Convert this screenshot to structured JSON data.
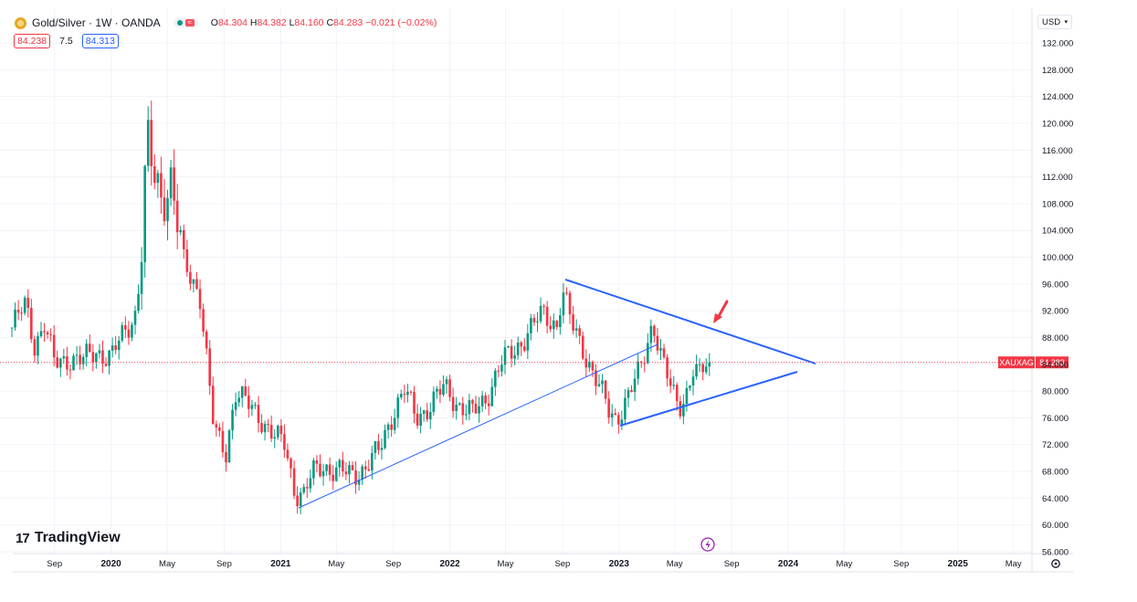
{
  "header": {
    "symbol_title": "Gold/Silver · 1W · OANDA",
    "ohlc": [
      {
        "label": "O",
        "value": "84.304"
      },
      {
        "label": "H",
        "value": "84.382"
      },
      {
        "label": "L",
        "value": "84.160"
      },
      {
        "label": "C",
        "value": "84.283"
      }
    ],
    "change": "−0.021 (−0.02%)",
    "bid": "84.238",
    "spread": "7.5",
    "ask": "84.313"
  },
  "currency_selector": {
    "value": "USD"
  },
  "brand": "TradingView",
  "colors": {
    "up": "#089981",
    "down": "#f23645",
    "trendline": "#2962ff",
    "grid": "#f0f3fa",
    "last_price_label": "#f23645"
  },
  "chart_data": {
    "type": "candlestick",
    "symbol": "XAUXAG",
    "last_price": "84.283",
    "ylim": [
      55,
      133
    ],
    "y_ticks": [
      56,
      60,
      64,
      68,
      72,
      76,
      80,
      84,
      88,
      92,
      96,
      100,
      104,
      108,
      112,
      116,
      120,
      124,
      128,
      132
    ],
    "y_tick_labels": [
      "56.000",
      "60.000",
      "64.000",
      "68.000",
      "72.000",
      "76.000",
      "80.000",
      "84.000",
      "88.000",
      "92.000",
      "96.000",
      "100.000",
      "104.000",
      "108.000",
      "112.000",
      "116.000",
      "120.000",
      "124.000",
      "128.000",
      "132.000"
    ],
    "x_range": [
      "2019-06-01",
      "2025-06-10"
    ],
    "x_ticks": [
      {
        "date": "2019-09-01",
        "label": "Sep"
      },
      {
        "date": "2020-01-01",
        "label": "2020"
      },
      {
        "date": "2020-05-01",
        "label": "May"
      },
      {
        "date": "2020-09-01",
        "label": "Sep"
      },
      {
        "date": "2021-01-01",
        "label": "2021"
      },
      {
        "date": "2021-05-01",
        "label": "May"
      },
      {
        "date": "2021-09-01",
        "label": "Sep"
      },
      {
        "date": "2022-01-01",
        "label": "2022"
      },
      {
        "date": "2022-05-01",
        "label": "May"
      },
      {
        "date": "2022-09-01",
        "label": "Sep"
      },
      {
        "date": "2023-01-01",
        "label": "2023"
      },
      {
        "date": "2023-05-01",
        "label": "May"
      },
      {
        "date": "2023-09-01",
        "label": "Sep"
      },
      {
        "date": "2024-01-01",
        "label": "2024"
      },
      {
        "date": "2024-05-01",
        "label": "May"
      },
      {
        "date": "2024-09-01",
        "label": "Sep"
      },
      {
        "date": "2025-01-01",
        "label": "2025"
      },
      {
        "date": "2025-05-01",
        "label": "May"
      }
    ],
    "price_path": [
      {
        "date": "2019-06-01",
        "close": 89.5
      },
      {
        "date": "2019-07-01",
        "close": 93.0
      },
      {
        "date": "2019-07-20",
        "close": 87.0
      },
      {
        "date": "2019-08-10",
        "close": 90.0
      },
      {
        "date": "2019-09-01",
        "close": 84.0
      },
      {
        "date": "2019-10-01",
        "close": 85.0
      },
      {
        "date": "2019-11-01",
        "close": 84.5
      },
      {
        "date": "2019-12-01",
        "close": 86.0
      },
      {
        "date": "2020-01-01",
        "close": 85.0
      },
      {
        "date": "2020-02-01",
        "close": 89.0
      },
      {
        "date": "2020-02-25",
        "close": 92.0
      },
      {
        "date": "2020-03-10",
        "close": 104.0
      },
      {
        "date": "2020-03-18",
        "close": 118.0
      },
      {
        "date": "2020-04-01",
        "close": 112.0
      },
      {
        "date": "2020-04-20",
        "close": 109.0
      },
      {
        "date": "2020-05-10",
        "close": 112.0
      },
      {
        "date": "2020-06-01",
        "close": 100.0
      },
      {
        "date": "2020-06-20",
        "close": 97.0
      },
      {
        "date": "2020-07-10",
        "close": 95.0
      },
      {
        "date": "2020-07-25",
        "close": 85.0
      },
      {
        "date": "2020-08-10",
        "close": 74.0
      },
      {
        "date": "2020-08-25",
        "close": 72.0
      },
      {
        "date": "2020-09-05",
        "close": 71.0
      },
      {
        "date": "2020-09-25",
        "close": 80.0
      },
      {
        "date": "2020-10-20",
        "close": 78.0
      },
      {
        "date": "2020-11-20",
        "close": 76.0
      },
      {
        "date": "2020-12-20",
        "close": 73.0
      },
      {
        "date": "2021-01-10",
        "close": 72.0
      },
      {
        "date": "2021-02-01",
        "close": 65.0
      },
      {
        "date": "2021-02-20",
        "close": 64.5
      },
      {
        "date": "2021-03-10",
        "close": 67.5
      },
      {
        "date": "2021-04-01",
        "close": 69.0
      },
      {
        "date": "2021-05-01",
        "close": 68.0
      },
      {
        "date": "2021-06-01",
        "close": 67.5
      },
      {
        "date": "2021-07-01",
        "close": 68.5
      },
      {
        "date": "2021-08-01",
        "close": 71.0
      },
      {
        "date": "2021-09-01",
        "close": 77.0
      },
      {
        "date": "2021-09-25",
        "close": 80.0
      },
      {
        "date": "2021-10-20",
        "close": 76.0
      },
      {
        "date": "2021-11-20",
        "close": 78.0
      },
      {
        "date": "2021-12-20",
        "close": 80.5
      },
      {
        "date": "2022-01-20",
        "close": 78.0
      },
      {
        "date": "2022-02-20",
        "close": 76.5
      },
      {
        "date": "2022-03-20",
        "close": 79.0
      },
      {
        "date": "2022-04-20",
        "close": 84.0
      },
      {
        "date": "2022-05-20",
        "close": 86.0
      },
      {
        "date": "2022-06-20",
        "close": 89.0
      },
      {
        "date": "2022-07-20",
        "close": 91.5
      },
      {
        "date": "2022-08-20",
        "close": 90.0
      },
      {
        "date": "2022-09-01",
        "close": 95.0
      },
      {
        "date": "2022-09-20",
        "close": 90.0
      },
      {
        "date": "2022-10-15",
        "close": 86.5
      },
      {
        "date": "2022-11-10",
        "close": 82.0
      },
      {
        "date": "2022-12-10",
        "close": 77.0
      },
      {
        "date": "2022-12-25",
        "close": 76.0
      },
      {
        "date": "2023-01-20",
        "close": 79.0
      },
      {
        "date": "2023-02-15",
        "close": 83.0
      },
      {
        "date": "2023-03-05",
        "close": 88.0
      },
      {
        "date": "2023-03-15",
        "close": 90.5
      },
      {
        "date": "2023-04-05",
        "close": 84.0
      },
      {
        "date": "2023-04-25",
        "close": 80.0
      },
      {
        "date": "2023-05-10",
        "close": 78.0
      },
      {
        "date": "2023-05-25",
        "close": 79.5
      },
      {
        "date": "2023-06-10",
        "close": 83.0
      },
      {
        "date": "2023-06-25",
        "close": 82.0
      },
      {
        "date": "2023-07-10",
        "close": 84.5
      },
      {
        "date": "2023-07-20",
        "close": 84.283
      }
    ]
  }
}
